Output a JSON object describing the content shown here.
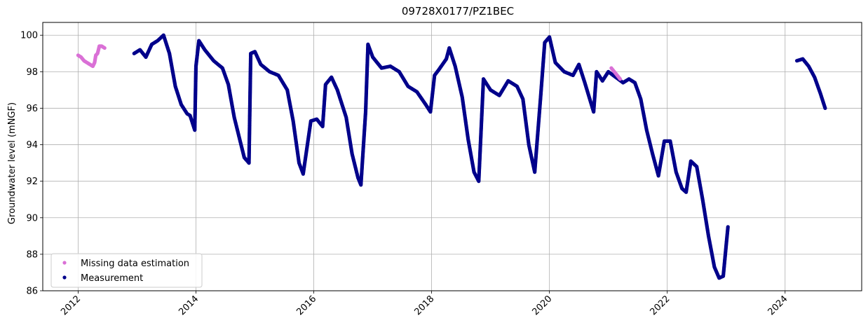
{
  "chart_data": {
    "type": "scatter",
    "title": "09728X0177/PZ1BEC",
    "xlabel": "",
    "ylabel": "Groundwater level (mNGF)",
    "xlim": [
      2011.4,
      2025.3
    ],
    "ylim": [
      86,
      100.7
    ],
    "x_ticks": [
      "2012",
      "2014",
      "2016",
      "2018",
      "2020",
      "2022",
      "2024"
    ],
    "y_ticks": [
      "86",
      "88",
      "90",
      "92",
      "94",
      "96",
      "98",
      "100"
    ],
    "grid": true,
    "legend_position": "lower-left",
    "colors": {
      "estimation": "#da70d6",
      "measurement": "#00008b"
    },
    "series": [
      {
        "name": "Missing data estimation",
        "color": "#da70d6",
        "points": [
          [
            2012.0,
            98.9
          ],
          [
            2012.05,
            98.8
          ],
          [
            2012.1,
            98.6
          ],
          [
            2012.15,
            98.5
          ],
          [
            2012.2,
            98.4
          ],
          [
            2012.25,
            98.3
          ],
          [
            2012.28,
            98.5
          ],
          [
            2012.3,
            98.9
          ],
          [
            2012.33,
            99.0
          ],
          [
            2012.36,
            99.4
          ],
          [
            2012.4,
            99.4
          ],
          [
            2012.45,
            99.3
          ],
          [
            2021.05,
            98.2
          ],
          [
            2021.1,
            98.0
          ],
          [
            2021.15,
            97.8
          ],
          [
            2021.2,
            97.6
          ]
        ]
      },
      {
        "name": "Measurement",
        "color": "#00008b",
        "points": [
          [
            2012.95,
            99.0
          ],
          [
            2013.05,
            99.2
          ],
          [
            2013.15,
            98.8
          ],
          [
            2013.25,
            99.5
          ],
          [
            2013.35,
            99.7
          ],
          [
            2013.45,
            100.0
          ],
          [
            2013.55,
            99.0
          ],
          [
            2013.65,
            97.2
          ],
          [
            2013.75,
            96.2
          ],
          [
            2013.85,
            95.7
          ],
          [
            2013.9,
            95.6
          ],
          [
            2013.98,
            94.8
          ],
          [
            2014.0,
            98.3
          ],
          [
            2014.05,
            99.7
          ],
          [
            2014.15,
            99.2
          ],
          [
            2014.3,
            98.6
          ],
          [
            2014.45,
            98.2
          ],
          [
            2014.55,
            97.3
          ],
          [
            2014.65,
            95.5
          ],
          [
            2014.75,
            94.2
          ],
          [
            2014.82,
            93.3
          ],
          [
            2014.9,
            93.0
          ],
          [
            2014.93,
            99.0
          ],
          [
            2015.0,
            99.1
          ],
          [
            2015.1,
            98.4
          ],
          [
            2015.25,
            98.0
          ],
          [
            2015.4,
            97.8
          ],
          [
            2015.55,
            97.0
          ],
          [
            2015.65,
            95.3
          ],
          [
            2015.75,
            93.0
          ],
          [
            2015.82,
            92.4
          ],
          [
            2015.95,
            95.3
          ],
          [
            2016.05,
            95.4
          ],
          [
            2016.15,
            95.0
          ],
          [
            2016.2,
            97.3
          ],
          [
            2016.3,
            97.7
          ],
          [
            2016.4,
            97.0
          ],
          [
            2016.55,
            95.5
          ],
          [
            2016.65,
            93.5
          ],
          [
            2016.75,
            92.2
          ],
          [
            2016.8,
            91.8
          ],
          [
            2016.88,
            95.8
          ],
          [
            2016.92,
            99.5
          ],
          [
            2017.0,
            98.8
          ],
          [
            2017.15,
            98.2
          ],
          [
            2017.3,
            98.3
          ],
          [
            2017.45,
            98.0
          ],
          [
            2017.6,
            97.2
          ],
          [
            2017.75,
            96.9
          ],
          [
            2017.9,
            96.2
          ],
          [
            2017.98,
            95.8
          ],
          [
            2018.05,
            97.8
          ],
          [
            2018.12,
            98.1
          ],
          [
            2018.25,
            98.7
          ],
          [
            2018.3,
            99.3
          ],
          [
            2018.4,
            98.3
          ],
          [
            2018.52,
            96.6
          ],
          [
            2018.62,
            94.3
          ],
          [
            2018.72,
            92.5
          ],
          [
            2018.8,
            92.0
          ],
          [
            2018.88,
            97.6
          ],
          [
            2019.0,
            97.0
          ],
          [
            2019.15,
            96.7
          ],
          [
            2019.3,
            97.5
          ],
          [
            2019.45,
            97.2
          ],
          [
            2019.55,
            96.5
          ],
          [
            2019.65,
            94.0
          ],
          [
            2019.75,
            92.5
          ],
          [
            2019.85,
            96.6
          ],
          [
            2019.92,
            99.6
          ],
          [
            2020.0,
            99.9
          ],
          [
            2020.1,
            98.5
          ],
          [
            2020.25,
            98.0
          ],
          [
            2020.4,
            97.8
          ],
          [
            2020.5,
            98.4
          ],
          [
            2020.6,
            97.4
          ],
          [
            2020.75,
            95.8
          ],
          [
            2020.8,
            98.0
          ],
          [
            2020.9,
            97.5
          ],
          [
            2021.0,
            98.0
          ],
          [
            2021.25,
            97.4
          ],
          [
            2021.35,
            97.6
          ],
          [
            2021.45,
            97.4
          ],
          [
            2021.55,
            96.5
          ],
          [
            2021.65,
            94.8
          ],
          [
            2021.75,
            93.5
          ],
          [
            2021.85,
            92.3
          ],
          [
            2021.95,
            94.2
          ],
          [
            2022.05,
            94.2
          ],
          [
            2022.15,
            92.5
          ],
          [
            2022.25,
            91.6
          ],
          [
            2022.32,
            91.4
          ],
          [
            2022.4,
            93.1
          ],
          [
            2022.5,
            92.8
          ],
          [
            2022.6,
            91.0
          ],
          [
            2022.7,
            89.0
          ],
          [
            2022.8,
            87.3
          ],
          [
            2022.88,
            86.7
          ],
          [
            2022.95,
            86.8
          ],
          [
            2023.0,
            88.5
          ],
          [
            2023.03,
            89.5
          ],
          [
            2024.2,
            98.6
          ],
          [
            2024.3,
            98.7
          ],
          [
            2024.4,
            98.3
          ],
          [
            2024.5,
            97.7
          ],
          [
            2024.6,
            96.8
          ],
          [
            2024.68,
            96.0
          ]
        ]
      }
    ]
  }
}
